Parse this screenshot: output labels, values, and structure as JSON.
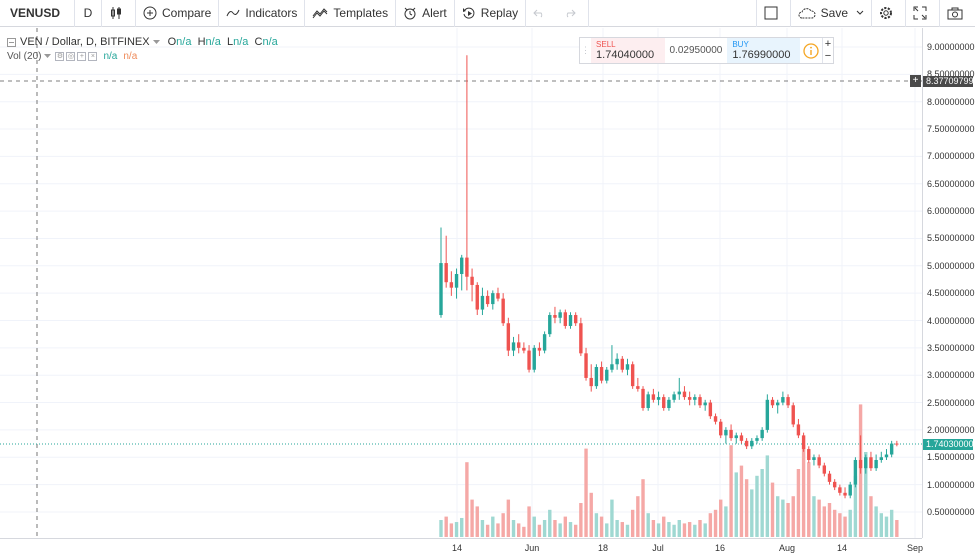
{
  "toolbar": {
    "symbol": "VENUSD",
    "interval": "D",
    "compare_label": "Compare",
    "indicators_label": "Indicators",
    "templates_label": "Templates",
    "alert_label": "Alert",
    "replay_label": "Replay",
    "save_label": "Save"
  },
  "legend": {
    "title": "VEN / Dollar, D, BITFINEX",
    "o_key": "O",
    "o_val": "n/a",
    "h_key": "H",
    "h_val": "n/a",
    "l_key": "L",
    "l_val": "n/a",
    "c_key": "C",
    "c_val": "n/a"
  },
  "vol_legend": {
    "title": "Vol (20)",
    "val1": "n/a",
    "val2": "n/a"
  },
  "trade": {
    "sell_label": "SELL",
    "sell_price": "1.74040000",
    "spread": "0.02950000",
    "buy_label": "BUY",
    "buy_price": "1.76990000",
    "plus": "+",
    "minus": "−"
  },
  "price_axis": {
    "ticks": [
      "9.00000000",
      "8.50000000",
      "8.00000000",
      "7.50000000",
      "7.00000000",
      "6.50000000",
      "6.00000000",
      "5.50000000",
      "5.00000000",
      "4.50000000",
      "4.00000000",
      "3.50000000",
      "3.00000000",
      "2.50000000",
      "2.00000000",
      "1.50000000",
      "1.00000000",
      "0.50000000"
    ],
    "crosshair_label": "8.37709799",
    "last_price_label": "1.74030000"
  },
  "time_axis": {
    "ticks": [
      "14",
      "Jun",
      "18",
      "Jul",
      "16",
      "Aug",
      "14",
      "Sep"
    ]
  },
  "colors": {
    "up": "#26a69a",
    "down": "#ef5350",
    "up_vol": "#9fd8d2",
    "down_vol": "#f5a8a6"
  },
  "chart_data": {
    "type": "candlestick",
    "ylim": [
      0,
      9.5
    ],
    "series": [
      {
        "o": 4.1,
        "h": 5.7,
        "l": 4.05,
        "c": 5.05,
        "v": 0.25
      },
      {
        "o": 5.05,
        "h": 5.55,
        "l": 4.6,
        "c": 4.7,
        "v": 0.3
      },
      {
        "o": 4.7,
        "h": 4.9,
        "l": 4.45,
        "c": 4.6,
        "v": 0.2
      },
      {
        "o": 4.6,
        "h": 4.95,
        "l": 4.4,
        "c": 4.85,
        "v": 0.22
      },
      {
        "o": 4.85,
        "h": 5.2,
        "l": 4.55,
        "c": 5.15,
        "v": 0.28
      },
      {
        "o": 5.15,
        "h": 8.85,
        "l": 4.55,
        "c": 4.8,
        "v": 1.1
      },
      {
        "o": 4.8,
        "h": 4.95,
        "l": 4.35,
        "c": 4.65,
        "v": 0.55
      },
      {
        "o": 4.65,
        "h": 4.7,
        "l": 4.1,
        "c": 4.2,
        "v": 0.45
      },
      {
        "o": 4.2,
        "h": 4.6,
        "l": 4.1,
        "c": 4.45,
        "v": 0.25
      },
      {
        "o": 4.45,
        "h": 4.55,
        "l": 4.25,
        "c": 4.3,
        "v": 0.18
      },
      {
        "o": 4.3,
        "h": 4.55,
        "l": 4.2,
        "c": 4.5,
        "v": 0.3
      },
      {
        "o": 4.5,
        "h": 4.6,
        "l": 4.35,
        "c": 4.4,
        "v": 0.2
      },
      {
        "o": 4.4,
        "h": 4.5,
        "l": 3.9,
        "c": 3.95,
        "v": 0.35
      },
      {
        "o": 3.95,
        "h": 4.05,
        "l": 3.35,
        "c": 3.45,
        "v": 0.55
      },
      {
        "o": 3.45,
        "h": 3.7,
        "l": 3.35,
        "c": 3.6,
        "v": 0.25
      },
      {
        "o": 3.6,
        "h": 3.75,
        "l": 3.4,
        "c": 3.5,
        "v": 0.2
      },
      {
        "o": 3.5,
        "h": 3.6,
        "l": 3.4,
        "c": 3.45,
        "v": 0.15
      },
      {
        "o": 3.45,
        "h": 3.55,
        "l": 3.05,
        "c": 3.1,
        "v": 0.45
      },
      {
        "o": 3.1,
        "h": 3.55,
        "l": 3.05,
        "c": 3.5,
        "v": 0.3
      },
      {
        "o": 3.5,
        "h": 3.6,
        "l": 3.35,
        "c": 3.45,
        "v": 0.18
      },
      {
        "o": 3.45,
        "h": 3.8,
        "l": 3.4,
        "c": 3.75,
        "v": 0.25
      },
      {
        "o": 3.75,
        "h": 4.15,
        "l": 3.7,
        "c": 4.1,
        "v": 0.4
      },
      {
        "o": 4.1,
        "h": 4.25,
        "l": 3.95,
        "c": 4.05,
        "v": 0.25
      },
      {
        "o": 4.05,
        "h": 4.2,
        "l": 3.95,
        "c": 4.15,
        "v": 0.2
      },
      {
        "o": 4.15,
        "h": 4.2,
        "l": 3.85,
        "c": 3.9,
        "v": 0.3
      },
      {
        "o": 3.9,
        "h": 4.15,
        "l": 3.85,
        "c": 4.1,
        "v": 0.22
      },
      {
        "o": 4.1,
        "h": 4.15,
        "l": 3.9,
        "c": 3.95,
        "v": 0.18
      },
      {
        "o": 3.95,
        "h": 4.05,
        "l": 3.35,
        "c": 3.4,
        "v": 0.5
      },
      {
        "o": 3.4,
        "h": 3.5,
        "l": 2.9,
        "c": 2.95,
        "v": 1.3
      },
      {
        "o": 2.95,
        "h": 3.2,
        "l": 2.7,
        "c": 2.8,
        "v": 0.65
      },
      {
        "o": 2.8,
        "h": 3.2,
        "l": 2.75,
        "c": 3.15,
        "v": 0.35
      },
      {
        "o": 3.15,
        "h": 3.25,
        "l": 2.85,
        "c": 2.9,
        "v": 0.3
      },
      {
        "o": 2.9,
        "h": 3.15,
        "l": 2.85,
        "c": 3.1,
        "v": 0.2
      },
      {
        "o": 3.1,
        "h": 3.55,
        "l": 3.05,
        "c": 3.2,
        "v": 0.55
      },
      {
        "o": 3.2,
        "h": 3.4,
        "l": 3.1,
        "c": 3.3,
        "v": 0.25
      },
      {
        "o": 3.3,
        "h": 3.35,
        "l": 3.05,
        "c": 3.1,
        "v": 0.22
      },
      {
        "o": 3.1,
        "h": 3.3,
        "l": 3.0,
        "c": 3.2,
        "v": 0.18
      },
      {
        "o": 3.2,
        "h": 3.25,
        "l": 2.75,
        "c": 2.8,
        "v": 0.4
      },
      {
        "o": 2.8,
        "h": 2.95,
        "l": 2.7,
        "c": 2.75,
        "v": 0.6
      },
      {
        "o": 2.75,
        "h": 2.8,
        "l": 2.35,
        "c": 2.4,
        "v": 0.85
      },
      {
        "o": 2.4,
        "h": 2.7,
        "l": 2.35,
        "c": 2.65,
        "v": 0.35
      },
      {
        "o": 2.65,
        "h": 2.75,
        "l": 2.5,
        "c": 2.55,
        "v": 0.25
      },
      {
        "o": 2.55,
        "h": 2.7,
        "l": 2.45,
        "c": 2.6,
        "v": 0.2
      },
      {
        "o": 2.6,
        "h": 2.65,
        "l": 2.35,
        "c": 2.4,
        "v": 0.3
      },
      {
        "o": 2.4,
        "h": 2.6,
        "l": 2.35,
        "c": 2.55,
        "v": 0.22
      },
      {
        "o": 2.55,
        "h": 2.7,
        "l": 2.5,
        "c": 2.65,
        "v": 0.18
      },
      {
        "o": 2.65,
        "h": 2.95,
        "l": 2.55,
        "c": 2.7,
        "v": 0.25
      },
      {
        "o": 2.7,
        "h": 2.8,
        "l": 2.55,
        "c": 2.6,
        "v": 0.2
      },
      {
        "o": 2.6,
        "h": 2.7,
        "l": 2.45,
        "c": 2.55,
        "v": 0.22
      },
      {
        "o": 2.55,
        "h": 2.65,
        "l": 2.45,
        "c": 2.6,
        "v": 0.18
      },
      {
        "o": 2.6,
        "h": 2.65,
        "l": 2.4,
        "c": 2.45,
        "v": 0.25
      },
      {
        "o": 2.45,
        "h": 2.55,
        "l": 2.35,
        "c": 2.5,
        "v": 0.2
      },
      {
        "o": 2.5,
        "h": 2.55,
        "l": 2.2,
        "c": 2.25,
        "v": 0.35
      },
      {
        "o": 2.25,
        "h": 2.3,
        "l": 2.1,
        "c": 2.15,
        "v": 0.4
      },
      {
        "o": 2.15,
        "h": 2.2,
        "l": 1.85,
        "c": 1.9,
        "v": 0.55
      },
      {
        "o": 1.9,
        "h": 2.05,
        "l": 1.75,
        "c": 2.0,
        "v": 0.45
      },
      {
        "o": 2.0,
        "h": 2.1,
        "l": 1.8,
        "c": 1.85,
        "v": 1.35
      },
      {
        "o": 1.85,
        "h": 1.95,
        "l": 1.75,
        "c": 1.9,
        "v": 0.95
      },
      {
        "o": 1.9,
        "h": 1.95,
        "l": 1.75,
        "c": 1.8,
        "v": 1.05
      },
      {
        "o": 1.8,
        "h": 1.85,
        "l": 1.65,
        "c": 1.7,
        "v": 0.85
      },
      {
        "o": 1.7,
        "h": 1.85,
        "l": 1.65,
        "c": 1.8,
        "v": 0.7
      },
      {
        "o": 1.8,
        "h": 1.9,
        "l": 1.75,
        "c": 1.85,
        "v": 0.9
      },
      {
        "o": 1.85,
        "h": 2.05,
        "l": 1.8,
        "c": 2.0,
        "v": 1.0
      },
      {
        "o": 2.0,
        "h": 2.65,
        "l": 1.95,
        "c": 2.55,
        "v": 1.2
      },
      {
        "o": 2.55,
        "h": 2.6,
        "l": 2.4,
        "c": 2.45,
        "v": 0.8
      },
      {
        "o": 2.45,
        "h": 2.55,
        "l": 2.3,
        "c": 2.5,
        "v": 0.6
      },
      {
        "o": 2.5,
        "h": 2.7,
        "l": 2.45,
        "c": 2.6,
        "v": 0.55
      },
      {
        "o": 2.6,
        "h": 2.65,
        "l": 2.4,
        "c": 2.45,
        "v": 0.5
      },
      {
        "o": 2.45,
        "h": 2.5,
        "l": 2.05,
        "c": 2.1,
        "v": 0.6
      },
      {
        "o": 2.1,
        "h": 2.2,
        "l": 1.85,
        "c": 1.9,
        "v": 1.0
      },
      {
        "o": 1.9,
        "h": 1.95,
        "l": 1.6,
        "c": 1.65,
        "v": 1.35
      },
      {
        "o": 1.65,
        "h": 1.7,
        "l": 1.4,
        "c": 1.45,
        "v": 1.1
      },
      {
        "o": 1.45,
        "h": 1.55,
        "l": 1.35,
        "c": 1.5,
        "v": 0.6
      },
      {
        "o": 1.5,
        "h": 1.55,
        "l": 1.3,
        "c": 1.35,
        "v": 0.55
      },
      {
        "o": 1.35,
        "h": 1.4,
        "l": 1.15,
        "c": 1.2,
        "v": 0.45
      },
      {
        "o": 1.2,
        "h": 1.25,
        "l": 1.0,
        "c": 1.05,
        "v": 0.5
      },
      {
        "o": 1.05,
        "h": 1.1,
        "l": 0.9,
        "c": 0.95,
        "v": 0.4
      },
      {
        "o": 0.95,
        "h": 1.0,
        "l": 0.8,
        "c": 0.85,
        "v": 0.35
      },
      {
        "o": 0.85,
        "h": 0.95,
        "l": 0.75,
        "c": 0.8,
        "v": 0.3
      },
      {
        "o": 0.8,
        "h": 1.05,
        "l": 0.75,
        "c": 1.0,
        "v": 0.4
      },
      {
        "o": 1.0,
        "h": 1.5,
        "l": 0.95,
        "c": 1.45,
        "v": 0.9
      },
      {
        "o": 1.45,
        "h": 1.9,
        "l": 1.2,
        "c": 1.3,
        "v": 1.95
      },
      {
        "o": 1.3,
        "h": 1.55,
        "l": 1.2,
        "c": 1.5,
        "v": 1.25
      },
      {
        "o": 1.5,
        "h": 1.6,
        "l": 1.25,
        "c": 1.3,
        "v": 0.6
      },
      {
        "o": 1.3,
        "h": 1.55,
        "l": 1.25,
        "c": 1.45,
        "v": 0.45
      },
      {
        "o": 1.45,
        "h": 1.6,
        "l": 1.4,
        "c": 1.5,
        "v": 0.35
      },
      {
        "o": 1.5,
        "h": 1.65,
        "l": 1.45,
        "c": 1.55,
        "v": 0.3
      },
      {
        "o": 1.55,
        "h": 1.8,
        "l": 1.5,
        "c": 1.75,
        "v": 0.4
      },
      {
        "o": 1.75,
        "h": 1.8,
        "l": 1.7,
        "c": 1.74,
        "v": 0.25
      }
    ]
  }
}
